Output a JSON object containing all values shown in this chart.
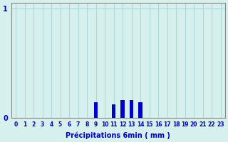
{
  "categories": [
    0,
    1,
    2,
    3,
    4,
    5,
    6,
    7,
    8,
    9,
    10,
    11,
    12,
    13,
    14,
    15,
    16,
    17,
    18,
    19,
    20,
    21,
    22,
    23
  ],
  "values": [
    0,
    0,
    0,
    0,
    0,
    0,
    0,
    0,
    0,
    0.14,
    0,
    0.12,
    0.16,
    0.16,
    0.14,
    0,
    0,
    0,
    0,
    0,
    0,
    0,
    0,
    0
  ],
  "bar_color": "#0000cc",
  "bg_color": "#d6f0ee",
  "grid_color": "#b0d8d8",
  "xlabel": "Précipitations 6min ( mm )",
  "xlabel_color": "#0000cc",
  "xlim": [
    -0.5,
    23.5
  ],
  "ylim": [
    0,
    1.05
  ],
  "yticks": [
    0,
    1
  ],
  "ytick_labels": [
    "0",
    "1"
  ],
  "tick_color": "#0000cc",
  "axis_color": "#888888",
  "tick_fontsize": 5.5,
  "xlabel_fontsize": 7
}
